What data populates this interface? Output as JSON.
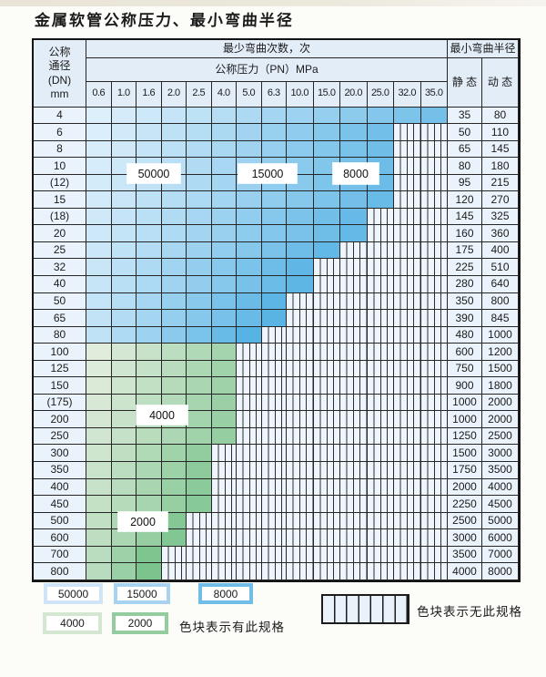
{
  "title": "金属软管公称压力、最小弯曲半径",
  "table": {
    "corner_lines": [
      "公称",
      "通径",
      "(DN)",
      "mm"
    ],
    "bend_times_header": "最少弯曲次数，次",
    "pressure_header": "公称压力（PN）MPa",
    "radius_header": "最小弯曲半径",
    "static_header": "静 态",
    "dynamic_header": "动 态",
    "pressure_columns": [
      "0.6",
      "1.0",
      "1.6",
      "2.0",
      "2.5",
      "4.0",
      "5.0",
      "6.3",
      "10.0",
      "15.0",
      "20.0",
      "25.0",
      "32.0",
      "35.0"
    ],
    "rows": [
      {
        "dn": "4",
        "colored": 14,
        "zone": "blue",
        "static": "35",
        "dynamic": "80"
      },
      {
        "dn": "6",
        "colored": 12,
        "zone": "blue",
        "static": "50",
        "dynamic": "110"
      },
      {
        "dn": "8",
        "colored": 12,
        "zone": "blue",
        "static": "65",
        "dynamic": "145"
      },
      {
        "dn": "10",
        "colored": 12,
        "zone": "blue",
        "static": "80",
        "dynamic": "180"
      },
      {
        "dn": "(12)",
        "colored": 12,
        "zone": "blue",
        "static": "95",
        "dynamic": "215"
      },
      {
        "dn": "15",
        "colored": 12,
        "zone": "blue",
        "static": "120",
        "dynamic": "270"
      },
      {
        "dn": "(18)",
        "colored": 11,
        "zone": "blue",
        "static": "145",
        "dynamic": "325"
      },
      {
        "dn": "20",
        "colored": 11,
        "zone": "blue",
        "static": "160",
        "dynamic": "360"
      },
      {
        "dn": "25",
        "colored": 10,
        "zone": "blue",
        "static": "175",
        "dynamic": "400"
      },
      {
        "dn": "32",
        "colored": 9,
        "zone": "blue",
        "static": "225",
        "dynamic": "510"
      },
      {
        "dn": "40",
        "colored": 9,
        "zone": "blue",
        "static": "280",
        "dynamic": "640"
      },
      {
        "dn": "50",
        "colored": 8,
        "zone": "blue",
        "static": "350",
        "dynamic": "800"
      },
      {
        "dn": "65",
        "colored": 8,
        "zone": "blue",
        "static": "390",
        "dynamic": "845"
      },
      {
        "dn": "80",
        "colored": 7,
        "zone": "blue",
        "static": "480",
        "dynamic": "1000"
      },
      {
        "dn": "100",
        "colored": 6,
        "zone": "green",
        "static": "600",
        "dynamic": "1200"
      },
      {
        "dn": "125",
        "colored": 6,
        "zone": "green",
        "static": "750",
        "dynamic": "1500"
      },
      {
        "dn": "150",
        "colored": 6,
        "zone": "green",
        "static": "900",
        "dynamic": "1800"
      },
      {
        "dn": "(175)",
        "colored": 6,
        "zone": "green",
        "static": "1000",
        "dynamic": "2000"
      },
      {
        "dn": "200",
        "colored": 6,
        "zone": "green",
        "static": "1000",
        "dynamic": "2000"
      },
      {
        "dn": "250",
        "colored": 6,
        "zone": "green",
        "static": "1250",
        "dynamic": "2500"
      },
      {
        "dn": "300",
        "colored": 5,
        "zone": "green",
        "static": "1500",
        "dynamic": "3000"
      },
      {
        "dn": "350",
        "colored": 5,
        "zone": "green",
        "static": "1750",
        "dynamic": "3500"
      },
      {
        "dn": "400",
        "colored": 5,
        "zone": "green",
        "static": "2000",
        "dynamic": "4000"
      },
      {
        "dn": "450",
        "colored": 5,
        "zone": "green",
        "static": "2250",
        "dynamic": "4500"
      },
      {
        "dn": "500",
        "colored": 4,
        "zone": "green",
        "static": "2500",
        "dynamic": "5000"
      },
      {
        "dn": "600",
        "colored": 4,
        "zone": "green",
        "static": "3000",
        "dynamic": "6000"
      },
      {
        "dn": "700",
        "colored": 3,
        "zone": "green",
        "static": "3500",
        "dynamic": "7000"
      },
      {
        "dn": "800",
        "colored": 3,
        "zone": "green",
        "static": "4000",
        "dynamic": "8000"
      }
    ]
  },
  "cycle_labels": [
    "50000",
    "15000",
    "8000",
    "4000",
    "2000"
  ],
  "legend": {
    "swatches": [
      {
        "label": "50000",
        "color": "#cfe4f6"
      },
      {
        "label": "15000",
        "color": "#a8d3f0"
      },
      {
        "label": "8000",
        "color": "#70bee7"
      },
      {
        "label": "4000",
        "color": "#d3e7d1"
      },
      {
        "label": "2000",
        "color": "#93cd9f"
      }
    ],
    "has_spec_note": "色块表示有此规格",
    "no_spec_note": "色块表示无此规格"
  },
  "colors": {
    "blue_light": "#ddeffb",
    "blue_dark": "#57b3e4",
    "green_light": "#e0ecdc",
    "green_dark": "#7cc48e",
    "hatch_bg": "#eef5fc",
    "header_bg": "#e2edf8",
    "label_bg": "#eaf3fb"
  }
}
